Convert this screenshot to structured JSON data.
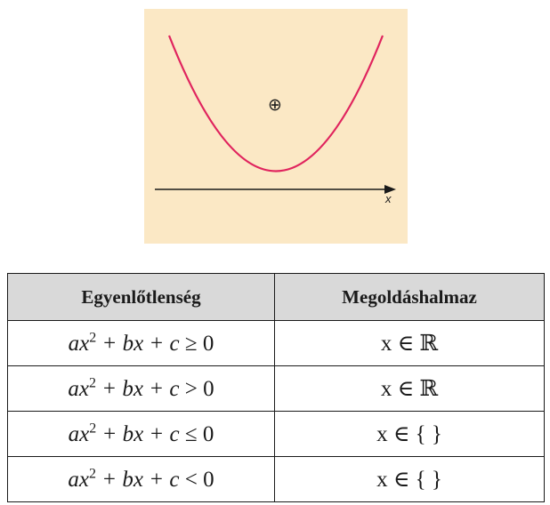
{
  "figure": {
    "axis_label": "x",
    "sign_marker": "⊕",
    "colors": {
      "background": "#fbe8c5",
      "curve": "#e0245e",
      "axis": "#1a1a1a"
    },
    "curve_shape": "upward-opening parabola above the x axis"
  },
  "table": {
    "headers": [
      "Egyenlőtlenség",
      "Megoldáshalmaz"
    ],
    "rows": [
      {
        "lhs": "ax",
        "exp": "2",
        "rest": " + bx + c ",
        "op": "≥",
        "rhs": " 0",
        "solution": "x ∈ ℝ"
      },
      {
        "lhs": "ax",
        "exp": "2",
        "rest": " + bx + c ",
        "op": ">",
        "rhs": " 0",
        "solution": "x ∈ ℝ"
      },
      {
        "lhs": "ax",
        "exp": "2",
        "rest": " + bx + c ",
        "op": "≤",
        "rhs": " 0",
        "solution": "x ∈ { }"
      },
      {
        "lhs": "ax",
        "exp": "2",
        "rest": " + bx + c ",
        "op": "<",
        "rhs": " 0",
        "solution": "x ∈ { }"
      }
    ]
  }
}
